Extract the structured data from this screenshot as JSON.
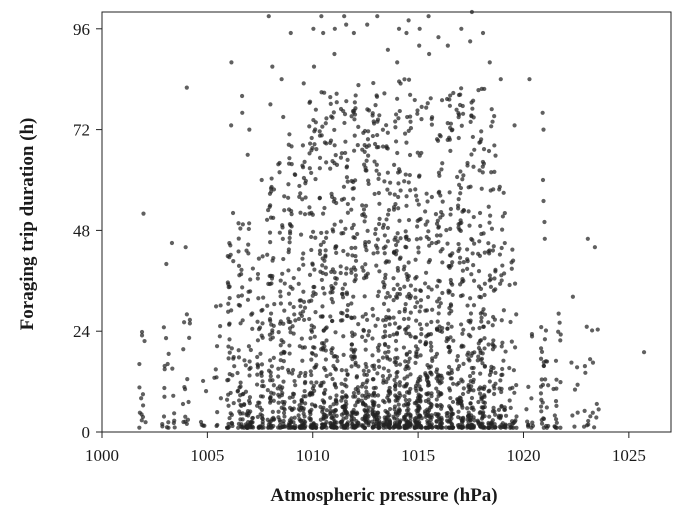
{
  "chart_data": {
    "type": "scatter",
    "title": "",
    "xlabel": "Atmospheric pressure (hPa)",
    "ylabel": "Foraging trip duration (h)",
    "xlim": [
      1000,
      1027
    ],
    "ylim": [
      0,
      100
    ],
    "xticks": [
      1000,
      1005,
      1010,
      1015,
      1020,
      1025
    ],
    "yticks": [
      0,
      24,
      48,
      72,
      96
    ],
    "xtick_labels": [
      "1000",
      "1005",
      "1010",
      "1015",
      "1020",
      "1025"
    ],
    "ytick_labels": [
      "0",
      "24",
      "48",
      "72",
      "96"
    ],
    "grid": false,
    "legend": "none",
    "marker_color": "#222222",
    "series": [
      {
        "clusters": [
          {
            "x": 1001.9,
            "n": 14,
            "ymax": 25,
            "extra": [
              52
            ]
          },
          {
            "x": 1003.0,
            "n": 12,
            "ymax": 26,
            "extra": [
              40
            ]
          },
          {
            "x": 1003.3,
            "n": 8,
            "ymax": 22,
            "extra": [
              45
            ]
          },
          {
            "x": 1004.0,
            "n": 16,
            "ymax": 28,
            "extra": [
              44,
              82
            ]
          },
          {
            "x": 1004.8,
            "n": 6,
            "ymax": 20,
            "extra": []
          },
          {
            "x": 1005.5,
            "n": 12,
            "ymax": 30,
            "extra": []
          },
          {
            "x": 1006.1,
            "n": 45,
            "ymax": 55,
            "extra": [
              73,
              88
            ]
          },
          {
            "x": 1006.6,
            "n": 45,
            "ymax": 50,
            "extra": [
              80,
              76
            ]
          },
          {
            "x": 1007.0,
            "n": 55,
            "ymax": 50,
            "extra": [
              72,
              66
            ]
          },
          {
            "x": 1007.5,
            "n": 50,
            "ymax": 45,
            "extra": [
              60
            ]
          },
          {
            "x": 1008.0,
            "n": 70,
            "ymax": 60,
            "extra": [
              99,
              87,
              78
            ]
          },
          {
            "x": 1008.5,
            "n": 65,
            "ymax": 65,
            "extra": [
              84,
              75
            ]
          },
          {
            "x": 1009.0,
            "n": 75,
            "ymax": 70,
            "extra": [
              95
            ]
          },
          {
            "x": 1009.5,
            "n": 80,
            "ymax": 72,
            "extra": [
              83
            ]
          },
          {
            "x": 1010.0,
            "n": 95,
            "ymax": 78,
            "extra": [
              96,
              87
            ]
          },
          {
            "x": 1010.5,
            "n": 95,
            "ymax": 80,
            "extra": [
              99,
              95
            ]
          },
          {
            "x": 1011.0,
            "n": 100,
            "ymax": 80,
            "extra": [
              96,
              90
            ]
          },
          {
            "x": 1011.5,
            "n": 100,
            "ymax": 78,
            "extra": [
              99,
              97
            ]
          },
          {
            "x": 1012.0,
            "n": 105,
            "ymax": 82,
            "extra": [
              95
            ]
          },
          {
            "x": 1012.5,
            "n": 100,
            "ymax": 80,
            "extra": [
              97
            ]
          },
          {
            "x": 1013.0,
            "n": 105,
            "ymax": 84,
            "extra": [
              99
            ]
          },
          {
            "x": 1013.5,
            "n": 110,
            "ymax": 82,
            "extra": [
              91
            ]
          },
          {
            "x": 1014.0,
            "n": 115,
            "ymax": 84,
            "extra": [
              96,
              88
            ]
          },
          {
            "x": 1014.5,
            "n": 120,
            "ymax": 85,
            "extra": [
              98,
              95
            ]
          },
          {
            "x": 1015.0,
            "n": 115,
            "ymax": 82,
            "extra": [
              96,
              92
            ]
          },
          {
            "x": 1015.5,
            "n": 100,
            "ymax": 80,
            "extra": [
              99,
              90
            ]
          },
          {
            "x": 1016.0,
            "n": 95,
            "ymax": 78,
            "extra": [
              94
            ]
          },
          {
            "x": 1016.5,
            "n": 95,
            "ymax": 80,
            "extra": [
              92
            ]
          },
          {
            "x": 1017.0,
            "n": 95,
            "ymax": 82,
            "extra": [
              96
            ]
          },
          {
            "x": 1017.5,
            "n": 100,
            "ymax": 78,
            "extra": [
              100,
              93
            ]
          },
          {
            "x": 1018.0,
            "n": 95,
            "ymax": 84,
            "extra": [
              95
            ]
          },
          {
            "x": 1018.5,
            "n": 75,
            "ymax": 76,
            "extra": [
              88
            ]
          },
          {
            "x": 1019.0,
            "n": 50,
            "ymax": 60,
            "extra": [
              84
            ]
          },
          {
            "x": 1019.5,
            "n": 30,
            "ymax": 45,
            "extra": [
              73
            ]
          },
          {
            "x": 1020.3,
            "n": 12,
            "ymax": 28,
            "extra": [
              84
            ]
          },
          {
            "x": 1021.0,
            "n": 30,
            "ymax": 30,
            "extra": [
              60,
              55,
              50,
              46,
              76,
              72
            ]
          },
          {
            "x": 1021.6,
            "n": 20,
            "ymax": 28,
            "extra": []
          },
          {
            "x": 1022.4,
            "n": 8,
            "ymax": 33,
            "extra": []
          },
          {
            "x": 1023.0,
            "n": 10,
            "ymax": 27,
            "extra": [
              46
            ]
          },
          {
            "x": 1023.4,
            "n": 8,
            "ymax": 30,
            "extra": [
              44
            ]
          },
          {
            "x": 1025.8,
            "n": 0,
            "ymax": 0,
            "extra": [
              19
            ]
          }
        ]
      }
    ]
  }
}
